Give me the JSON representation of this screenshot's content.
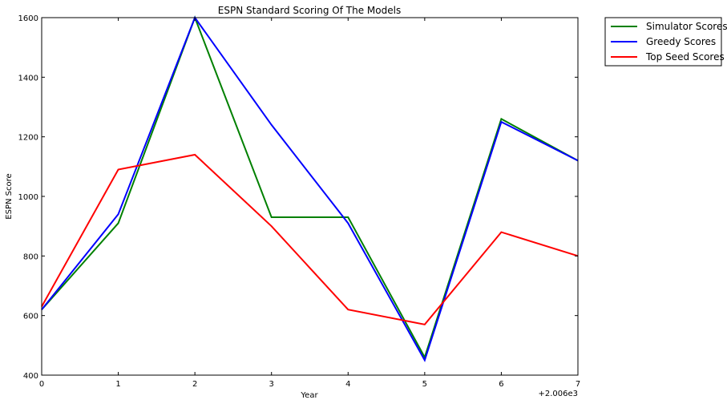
{
  "chart_data": {
    "type": "line",
    "title": "ESPN Standard Scoring Of The Models",
    "xlabel": "Year",
    "ylabel": "ESPN Score",
    "x_offset_text": "+2.006e3",
    "x": [
      0,
      1,
      2,
      3,
      4,
      5,
      6,
      7
    ],
    "x_ticks": [
      "0",
      "1",
      "2",
      "3",
      "4",
      "5",
      "6",
      "7"
    ],
    "y_ticks": [
      "400",
      "600",
      "800",
      "1000",
      "1200",
      "1400",
      "1600"
    ],
    "xlim": [
      0,
      7
    ],
    "ylim": [
      400,
      1600
    ],
    "grid": false,
    "legend_position": "outside top-right",
    "series": [
      {
        "name": "Simulator Scores",
        "color": "#008000",
        "values": [
          620,
          910,
          1600,
          930,
          930,
          460,
          1260,
          1120
        ]
      },
      {
        "name": "Greedy Scores",
        "color": "#0000ff",
        "values": [
          620,
          940,
          1600,
          1240,
          910,
          450,
          1250,
          1120
        ]
      },
      {
        "name": "Top Seed Scores",
        "color": "#ff0000",
        "values": [
          630,
          1090,
          1140,
          900,
          620,
          570,
          880,
          800
        ]
      }
    ]
  }
}
